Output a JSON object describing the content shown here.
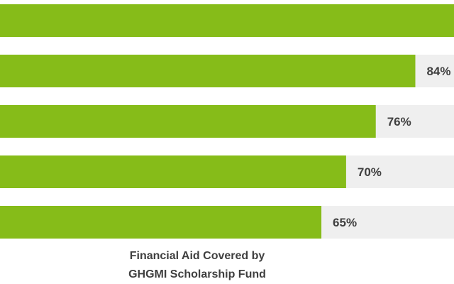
{
  "chart_data": {
    "type": "bar",
    "orientation": "horizontal",
    "categories": [
      "",
      "",
      "",
      "",
      ""
    ],
    "values": [
      100,
      84,
      76,
      70,
      65
    ],
    "value_labels": [
      "",
      "84%",
      "76%",
      "70%",
      "65%"
    ],
    "xlim": [
      0,
      100
    ],
    "grid": false,
    "title": "",
    "xlabel": "Financial Aid Covered by GHGMI Scholarship Fund",
    "ylabel": ""
  },
  "caption": {
    "line1": "Financial Aid Covered by",
    "line2": "GHGMI Scholarship Fund"
  },
  "colors": {
    "bar": "#86BC19",
    "track": "#EFEFEF",
    "label": "#3F3F3F",
    "caption": "#3F3F3F"
  }
}
